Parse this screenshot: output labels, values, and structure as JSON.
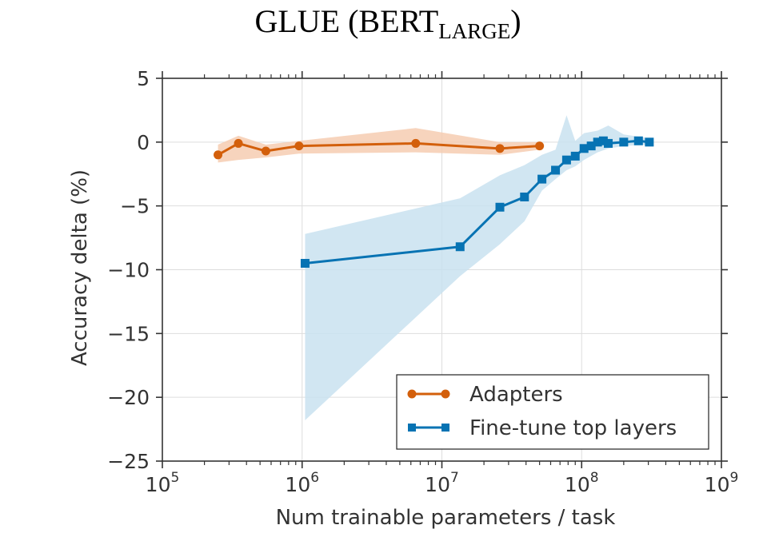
{
  "chart_data": {
    "type": "line",
    "title_main": "GLUE (BERT",
    "title_sub": "LARGE",
    "title_close": ")",
    "xlabel": "Num trainable parameters / task",
    "ylabel": "Accuracy delta (%)",
    "xscale": "log",
    "xlim": [
      100000,
      1000000000
    ],
    "ylim": [
      -25,
      5
    ],
    "x_ticks": [
      {
        "base": "10",
        "exp": "5",
        "value": 100000
      },
      {
        "base": "10",
        "exp": "6",
        "value": 1000000
      },
      {
        "base": "10",
        "exp": "7",
        "value": 10000000
      },
      {
        "base": "10",
        "exp": "8",
        "value": 100000000
      },
      {
        "base": "10",
        "exp": "9",
        "value": 1000000000
      }
    ],
    "y_ticks": [
      {
        "label": "5",
        "value": 5
      },
      {
        "label": "0",
        "value": 0
      },
      {
        "label": "−5",
        "value": -5
      },
      {
        "label": "−10",
        "value": -10
      },
      {
        "label": "−15",
        "value": -15
      },
      {
        "label": "−20",
        "value": -20
      },
      {
        "label": "−25",
        "value": -25
      }
    ],
    "grid": true,
    "legend_position": "bottom-right",
    "series": [
      {
        "name": "Adapters",
        "color": "#d35f0b",
        "band_color": "#f6cdb1",
        "marker": "circle",
        "x": [
          250000,
          350000,
          550000,
          950000,
          6500000,
          26000000,
          50000000
        ],
        "y": [
          -1.0,
          -0.1,
          -0.7,
          -0.3,
          -0.1,
          -0.5,
          -0.3
        ],
        "band_x": [
          250000,
          350000,
          550000,
          950000,
          6500000,
          26000000,
          50000000
        ],
        "band_low": [
          -1.6,
          -1.4,
          -1.2,
          -0.9,
          -0.8,
          -1.0,
          -0.6
        ],
        "band_high": [
          -0.2,
          0.5,
          -0.2,
          0.1,
          1.1,
          0.0,
          0.0
        ]
      },
      {
        "name": "Fine-tune top layers",
        "color": "#0773b3",
        "band_color": "#c9e2f0",
        "marker": "square",
        "x": [
          1050000,
          13500000,
          26000000,
          39000000,
          52000000,
          65000000,
          78000000,
          90000000,
          104000000,
          117000000,
          130000000,
          143000000,
          155000000,
          200000000,
          255000000,
          305000000
        ],
        "y": [
          -9.5,
          -8.2,
          -5.1,
          -4.3,
          -2.9,
          -2.2,
          -1.4,
          -1.1,
          -0.5,
          -0.3,
          0.0,
          0.1,
          -0.1,
          0.0,
          0.1,
          0.0
        ],
        "band_x": [
          1050000,
          13500000,
          26000000,
          39000000,
          52000000,
          65000000,
          78000000,
          90000000,
          104000000,
          130000000,
          155000000,
          200000000,
          305000000
        ],
        "band_low": [
          -21.8,
          -10.5,
          -8.0,
          -6.2,
          -3.8,
          -2.9,
          -2.2,
          -1.9,
          -1.4,
          -0.8,
          -0.5,
          -0.3,
          -0.2
        ],
        "band_high": [
          -7.2,
          -4.4,
          -2.6,
          -1.8,
          -1.0,
          -0.6,
          2.1,
          0.1,
          0.7,
          0.9,
          1.3,
          0.6,
          0.3
        ]
      }
    ]
  }
}
